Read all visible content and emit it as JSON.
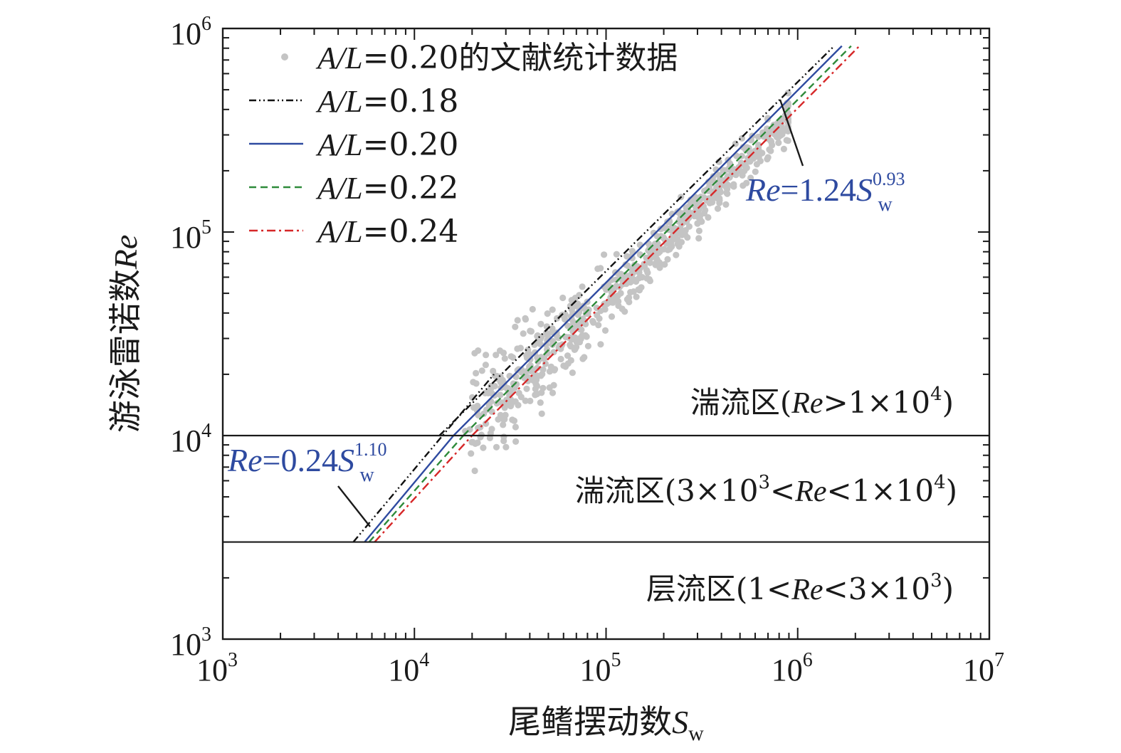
{
  "chart_data": {
    "type": "scatter",
    "scale": {
      "x": "log",
      "y": "log"
    },
    "xlim": [
      1000,
      10000000
    ],
    "ylim": [
      1000,
      1000000
    ],
    "x_ticks": [
      {
        "base": "10",
        "exp": "3"
      },
      {
        "base": "10",
        "exp": "4"
      },
      {
        "base": "10",
        "exp": "5"
      },
      {
        "base": "10",
        "exp": "6"
      },
      {
        "base": "10",
        "exp": "7"
      }
    ],
    "y_ticks": [
      {
        "base": "10",
        "exp": "3"
      },
      {
        "base": "10",
        "exp": "4"
      },
      {
        "base": "10",
        "exp": "5"
      },
      {
        "base": "10",
        "exp": "6"
      }
    ],
    "xlabel": {
      "text": "尾鳍摆动数",
      "symbol": "S",
      "sub": "w"
    },
    "ylabel": {
      "text": "游泳雷诺数",
      "symbol": "Re"
    },
    "legend": {
      "placement": "top-left",
      "entries": [
        {
          "prefix": "A/L",
          "rest": "=0.20的文献统计数据",
          "style": "dots",
          "color": "#c4c4c4"
        },
        {
          "prefix": "A/L",
          "rest": "=0.18",
          "style": "dash-dot-dot",
          "color": "#111111"
        },
        {
          "prefix": "A/L",
          "rest": "=0.20",
          "style": "solid",
          "color": "#2e4aa0"
        },
        {
          "prefix": "A/L",
          "rest": "=0.22",
          "style": "dashed",
          "color": "#2e8b3a"
        },
        {
          "prefix": "A/L",
          "rest": "=0.24",
          "style": "dash-dot",
          "color": "#d62728"
        }
      ]
    },
    "series": [
      {
        "name": "A/L=0.18",
        "color": "#111111",
        "dash": "dash-dot-dot",
        "segments": [
          [
            [
              4800,
              3000
            ],
            [
              26000,
              20000
            ]
          ],
          [
            [
              13500,
              10000
            ],
            [
              1550000,
              820000
            ]
          ]
        ]
      },
      {
        "name": "A/L=0.20",
        "color": "#2e4aa0",
        "dash": "solid",
        "segments": [
          [
            [
              5500,
              3000
            ],
            [
              16000,
              10000
            ]
          ],
          [
            [
              16000,
              10000
            ],
            [
              1700000,
              820000
            ]
          ]
        ]
      },
      {
        "name": "A/L=0.22",
        "color": "#2e8b3a",
        "dash": "dashed",
        "segments": [
          [
            [
              5800,
              3000
            ],
            [
              18000,
              10000
            ]
          ],
          [
            [
              18000,
              10000
            ],
            [
              1900000,
              820000
            ]
          ]
        ]
      },
      {
        "name": "A/L=0.24",
        "color": "#d62728",
        "dash": "dash-dot",
        "segments": [
          [
            [
              6200,
              3000
            ],
            [
              20000,
              10000
            ]
          ],
          [
            [
              20000,
              10000
            ],
            [
              2100000,
              820000
            ]
          ]
        ]
      }
    ],
    "scatter_region": [
      {
        "x": 20000,
        "y": 10000
      },
      {
        "x": 30000,
        "y": 15000
      },
      {
        "x": 50000,
        "y": 30000
      },
      {
        "x": 80000,
        "y": 40000
      },
      {
        "x": 120000,
        "y": 70000
      },
      {
        "x": 200000,
        "y": 120000
      },
      {
        "x": 350000,
        "y": 200000
      },
      {
        "x": 600000,
        "y": 350000
      },
      {
        "x": 900000,
        "y": 450000
      }
    ],
    "hlines": [
      10000,
      3000
    ],
    "regions": [
      {
        "label": "湍流区(",
        "sym": "Re",
        "tail": ">1×10",
        "sup": "4",
        "close": ")"
      },
      {
        "label": "湍流区(3×10",
        "sup1": "3",
        "mid": "<",
        "sym": "Re",
        "tail": "<1×10",
        "sup": "4",
        "close": ")"
      },
      {
        "label": "层流区(1<",
        "sym": "Re",
        "tail": "<3×10",
        "sup": "3",
        "close": ")"
      }
    ],
    "annotations": [
      {
        "sym": "Re",
        "eq": "=1.24",
        "s": "S",
        "sub": "w",
        "sup": "0.93",
        "color": "#2e4aa0"
      },
      {
        "sym": "Re",
        "eq": "=0.24",
        "s": "S",
        "sub": "w",
        "sup": "1.10",
        "color": "#2e4aa0"
      }
    ],
    "colors": {
      "scatter": "#c4c4c4",
      "axis": "#1a1a1a",
      "fit_text": "#2e4aa0"
    }
  }
}
